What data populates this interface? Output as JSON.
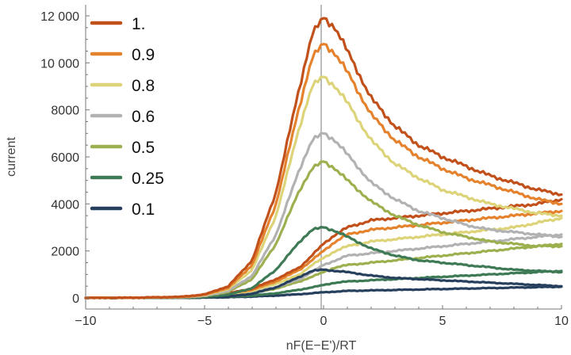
{
  "chart_data": {
    "type": "line",
    "title": "",
    "xlabel": "nF(E−E')/RT",
    "ylabel": "current",
    "xlim": [
      -10,
      10
    ],
    "ylim": [
      0,
      12200
    ],
    "x_ticks": [
      -10,
      -5,
      0,
      5,
      10
    ],
    "x_tick_labels": [
      "−10",
      "−5",
      "0",
      "5",
      "10"
    ],
    "y_ticks": [
      0,
      2000,
      4000,
      6000,
      8000,
      10000,
      12000
    ],
    "y_tick_labels": [
      "0",
      "2000",
      "4000",
      "6000",
      "8000",
      "10 000",
      "12 000"
    ],
    "grid": false,
    "legend_position": "top-left",
    "x": [
      -10,
      -8,
      -6,
      -5,
      -4,
      -3,
      -2,
      -1,
      -0.5,
      0,
      0.5,
      1,
      2,
      3,
      4,
      5,
      6,
      7,
      8,
      9,
      10
    ],
    "series": [
      {
        "name": "1.",
        "color": "#c1501a",
        "forward": [
          0,
          10,
          50,
          150,
          500,
          1600,
          4500,
          9000,
          11200,
          11900,
          11500,
          10500,
          8500,
          7300,
          6500,
          6000,
          5600,
          5200,
          4900,
          4600,
          4400
        ],
        "reverse": [
          0,
          10,
          30,
          80,
          200,
          400,
          800,
          1300,
          1800,
          2300,
          2700,
          3000,
          3300,
          3400,
          3500,
          3600,
          3700,
          3800,
          3900,
          4000,
          4200
        ]
      },
      {
        "name": "0.9",
        "color": "#e4822d",
        "forward": [
          0,
          10,
          40,
          130,
          430,
          1400,
          4000,
          8200,
          10200,
          10800,
          10400,
          9600,
          7800,
          6700,
          6000,
          5500,
          5100,
          4800,
          4500,
          4200,
          4000
        ],
        "reverse": [
          0,
          10,
          30,
          70,
          180,
          350,
          700,
          1200,
          1600,
          2000,
          2400,
          2700,
          2900,
          3000,
          3100,
          3200,
          3300,
          3400,
          3500,
          3600,
          3700
        ]
      },
      {
        "name": "0.8",
        "color": "#ddd47a",
        "forward": [
          0,
          10,
          40,
          120,
          380,
          1200,
          3500,
          7300,
          9000,
          9400,
          9000,
          8300,
          6700,
          5700,
          5100,
          4600,
          4300,
          4000,
          3800,
          3600,
          3500
        ],
        "reverse": [
          0,
          10,
          30,
          60,
          150,
          300,
          600,
          1000,
          1400,
          1700,
          2000,
          2200,
          2400,
          2500,
          2600,
          2700,
          2800,
          2900,
          3000,
          3200,
          3400
        ]
      },
      {
        "name": "0.6",
        "color": "#b2b2b2",
        "forward": [
          0,
          10,
          30,
          90,
          300,
          950,
          2700,
          5500,
          6700,
          7000,
          6700,
          6100,
          4900,
          4200,
          3700,
          3400,
          3100,
          2900,
          2800,
          2700,
          2600
        ],
        "reverse": [
          0,
          10,
          20,
          50,
          120,
          250,
          450,
          800,
          1100,
          1400,
          1600,
          1800,
          1900,
          2000,
          2100,
          2200,
          2300,
          2400,
          2500,
          2600,
          2700
        ]
      },
      {
        "name": "0.5",
        "color": "#9db050",
        "forward": [
          0,
          10,
          25,
          80,
          260,
          800,
          2300,
          4600,
          5500,
          5800,
          5500,
          5000,
          4100,
          3500,
          3100,
          2800,
          2600,
          2400,
          2300,
          2200,
          2200
        ],
        "reverse": [
          0,
          10,
          20,
          40,
          100,
          200,
          400,
          700,
          900,
          1100,
          1300,
          1400,
          1500,
          1600,
          1700,
          1800,
          1900,
          2000,
          2100,
          2200,
          2300
        ]
      },
      {
        "name": "0.25",
        "color": "#3e7a55",
        "forward": [
          0,
          5,
          15,
          40,
          140,
          420,
          1200,
          2400,
          2900,
          3000,
          2850,
          2600,
          2100,
          1800,
          1600,
          1500,
          1400,
          1300,
          1200,
          1150,
          1100
        ],
        "reverse": [
          0,
          5,
          10,
          20,
          50,
          100,
          200,
          350,
          450,
          550,
          650,
          700,
          750,
          800,
          850,
          900,
          950,
          1000,
          1050,
          1100,
          1150
        ]
      },
      {
        "name": "0.1",
        "color": "#27405d",
        "forward": [
          0,
          5,
          10,
          20,
          60,
          180,
          450,
          900,
          1150,
          1200,
          1150,
          1100,
          950,
          850,
          800,
          750,
          700,
          650,
          600,
          550,
          500
        ],
        "reverse": [
          0,
          5,
          8,
          15,
          30,
          60,
          100,
          160,
          200,
          240,
          270,
          300,
          320,
          340,
          360,
          380,
          400,
          420,
          440,
          460,
          480
        ]
      }
    ]
  }
}
